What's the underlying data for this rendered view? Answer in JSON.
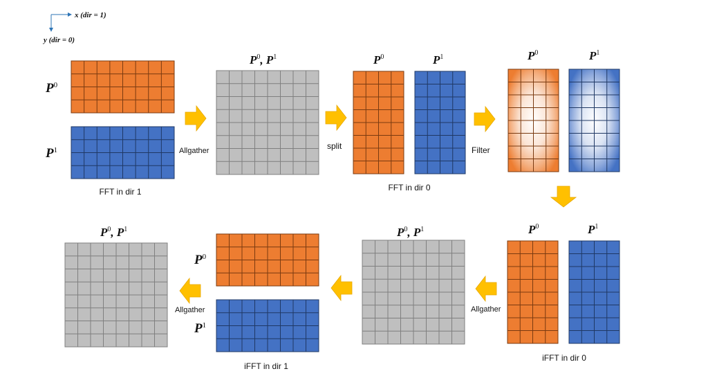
{
  "axes": {
    "x_label": "x (dir = 1)",
    "y_label": "y (dir = 0)"
  },
  "process_labels": {
    "p0": "P",
    "p0_sup": "0",
    "p1": "P",
    "p1_sup": "1",
    "combined": "P",
    "combined_sup0": "0",
    "combined_sep": ", ",
    "combined_sup1": "1"
  },
  "steps": {
    "fft_dir1": "FFT in dir 1",
    "fft_dir0": "FFT in dir 0",
    "ifft_dir0": "iFFT in dir 0",
    "ifft_dir1": "iFFT in dir 1",
    "allgather": "Allgather",
    "split": "split",
    "filter": "Filter"
  },
  "colors": {
    "orange": "#ED7D31",
    "blue": "#4472C4",
    "gray": "#BFBFBF",
    "arrow": "#FFC000",
    "axis": "#2E75B6"
  }
}
